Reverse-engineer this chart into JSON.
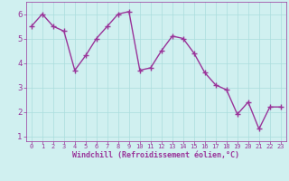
{
  "x": [
    0,
    1,
    2,
    3,
    4,
    5,
    6,
    7,
    8,
    9,
    10,
    11,
    12,
    13,
    14,
    15,
    16,
    17,
    18,
    19,
    20,
    21,
    22,
    23
  ],
  "y": [
    5.5,
    6.0,
    5.5,
    5.3,
    3.7,
    4.3,
    5.0,
    5.5,
    6.0,
    6.1,
    3.7,
    3.8,
    4.5,
    5.1,
    5.0,
    4.4,
    3.6,
    3.1,
    2.9,
    1.9,
    2.4,
    1.3,
    2.2,
    2.2
  ],
  "line_color": "#993399",
  "marker": "+",
  "marker_size": 4,
  "bg_color": "#d0f0f0",
  "grid_color": "#aadddd",
  "xlabel": "Windchill (Refroidissement éolien,°C)",
  "xlabel_color": "#993399",
  "tick_color": "#993399",
  "ylim": [
    0.8,
    6.5
  ],
  "xlim": [
    -0.5,
    23.5
  ],
  "yticks": [
    1,
    2,
    3,
    4,
    5,
    6
  ],
  "xticks": [
    0,
    1,
    2,
    3,
    4,
    5,
    6,
    7,
    8,
    9,
    10,
    11,
    12,
    13,
    14,
    15,
    16,
    17,
    18,
    19,
    20,
    21,
    22,
    23
  ],
  "spine_color": "#993399",
  "line_width": 1.0,
  "axis_bg_color": "#d0f0f0",
  "xlabel_fontsize": 6.0,
  "xtick_fontsize": 5.0,
  "ytick_fontsize": 6.5
}
